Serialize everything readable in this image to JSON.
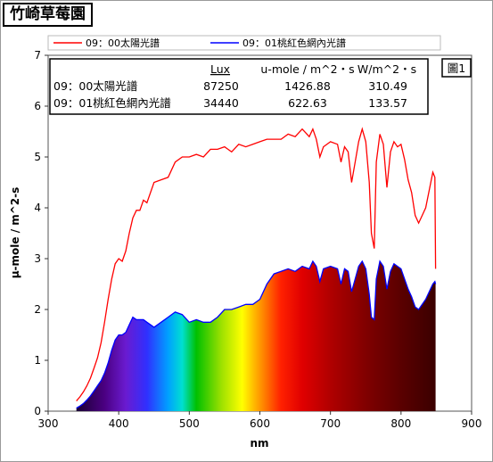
{
  "page_title": "竹崎草莓園",
  "chart_data": {
    "type": "area",
    "title": "",
    "xlabel": "nm",
    "ylabel": "μ-mole / m^2-s",
    "xlim": [
      300,
      900
    ],
    "ylim": [
      0,
      7
    ],
    "x_ticks": [
      "300",
      "400",
      "500",
      "600",
      "700",
      "800",
      "900"
    ],
    "y_ticks": [
      "0",
      "1",
      "2",
      "3",
      "4",
      "5",
      "6",
      "7"
    ],
    "grid": false,
    "legend_position": "top",
    "figure_label": "圖1",
    "series": [
      {
        "name": "09：00太陽光譜",
        "color": "#ff0000",
        "style": "line",
        "x": [
          340,
          345,
          350,
          355,
          360,
          365,
          370,
          375,
          380,
          385,
          390,
          395,
          400,
          405,
          410,
          415,
          420,
          425,
          430,
          435,
          440,
          450,
          460,
          470,
          480,
          490,
          500,
          510,
          520,
          530,
          540,
          550,
          560,
          570,
          580,
          590,
          600,
          610,
          620,
          630,
          640,
          650,
          660,
          670,
          675,
          680,
          685,
          690,
          700,
          710,
          715,
          720,
          725,
          730,
          735,
          740,
          745,
          750,
          755,
          758,
          762,
          765,
          770,
          775,
          780,
          785,
          790,
          795,
          800,
          805,
          810,
          815,
          820,
          825,
          830,
          835,
          840,
          845,
          848,
          849
        ],
        "y": [
          0.2,
          0.28,
          0.38,
          0.5,
          0.65,
          0.85,
          1.05,
          1.35,
          1.75,
          2.2,
          2.6,
          2.9,
          3.0,
          2.95,
          3.15,
          3.5,
          3.8,
          3.95,
          3.95,
          4.15,
          4.1,
          4.5,
          4.55,
          4.6,
          4.9,
          5.0,
          5.0,
          5.05,
          5.0,
          5.15,
          5.15,
          5.2,
          5.1,
          5.25,
          5.2,
          5.25,
          5.3,
          5.35,
          5.35,
          5.35,
          5.45,
          5.4,
          5.55,
          5.4,
          5.55,
          5.35,
          5.0,
          5.2,
          5.3,
          5.25,
          4.9,
          5.2,
          5.1,
          4.5,
          4.9,
          5.3,
          5.55,
          5.3,
          4.5,
          3.5,
          3.2,
          4.9,
          5.45,
          5.25,
          4.4,
          5.1,
          5.3,
          5.2,
          5.25,
          4.95,
          4.55,
          4.3,
          3.85,
          3.7,
          3.85,
          4.0,
          4.35,
          4.7,
          4.6,
          2.8
        ]
      },
      {
        "name": "09：01桃紅色網內光譜",
        "color": "#0000ff",
        "style": "spectrum-fill",
        "x": [
          340,
          345,
          350,
          355,
          360,
          365,
          370,
          375,
          380,
          385,
          390,
          395,
          400,
          405,
          410,
          415,
          420,
          425,
          430,
          435,
          440,
          450,
          460,
          470,
          480,
          490,
          500,
          510,
          520,
          530,
          540,
          550,
          560,
          570,
          580,
          590,
          600,
          610,
          620,
          630,
          640,
          650,
          660,
          670,
          675,
          680,
          685,
          690,
          700,
          710,
          715,
          720,
          725,
          730,
          735,
          740,
          745,
          750,
          755,
          758,
          762,
          765,
          770,
          775,
          780,
          785,
          790,
          795,
          800,
          805,
          810,
          815,
          820,
          825,
          830,
          835,
          840,
          845,
          848,
          849
        ],
        "y": [
          0.06,
          0.1,
          0.15,
          0.22,
          0.3,
          0.4,
          0.5,
          0.6,
          0.75,
          0.95,
          1.2,
          1.4,
          1.5,
          1.5,
          1.55,
          1.7,
          1.85,
          1.8,
          1.8,
          1.8,
          1.75,
          1.65,
          1.75,
          1.85,
          1.95,
          1.9,
          1.75,
          1.8,
          1.75,
          1.75,
          1.85,
          2.0,
          2.0,
          2.05,
          2.1,
          2.1,
          2.2,
          2.5,
          2.7,
          2.75,
          2.8,
          2.75,
          2.85,
          2.8,
          2.95,
          2.85,
          2.55,
          2.8,
          2.85,
          2.8,
          2.5,
          2.8,
          2.75,
          2.35,
          2.6,
          2.85,
          2.95,
          2.8,
          2.3,
          1.85,
          1.8,
          2.6,
          2.95,
          2.85,
          2.4,
          2.75,
          2.9,
          2.85,
          2.8,
          2.6,
          2.4,
          2.25,
          2.05,
          2.0,
          2.1,
          2.2,
          2.35,
          2.5,
          2.55,
          2.5
        ]
      }
    ],
    "table": {
      "headers": [
        "Lux",
        "u-mole / m^2・s",
        "W/m^2・s"
      ],
      "rows": [
        {
          "label": "09：00太陽光譜",
          "lux": "87250",
          "umole": "1426.88",
          "wm2": "310.49"
        },
        {
          "label": "09：01桃紅色網內光譜",
          "lux": "34440",
          "umole": "622.63",
          "wm2": "133.57"
        }
      ]
    }
  }
}
